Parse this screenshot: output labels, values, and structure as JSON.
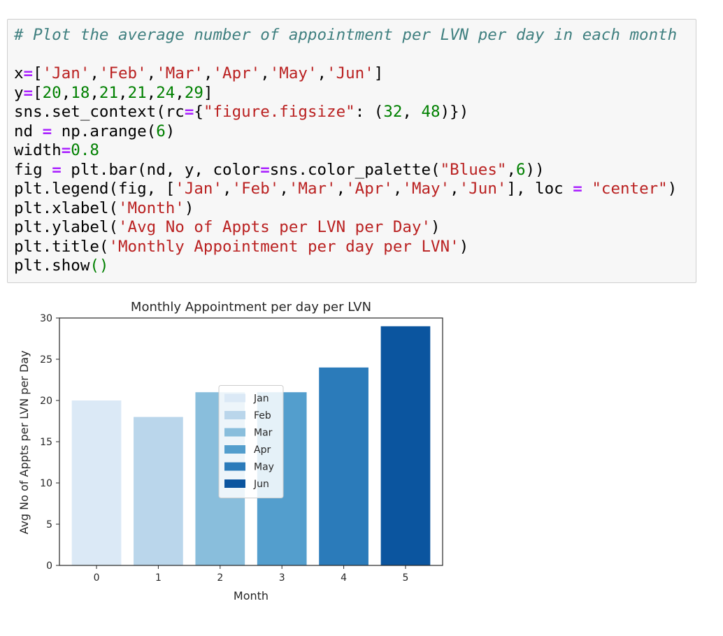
{
  "code_cell": {
    "lines": [
      [
        {
          "t": "# Plot the average number of appointment per LVN per day in each month",
          "c": "cm"
        }
      ],
      [],
      [
        {
          "t": "x",
          "c": "pr"
        },
        {
          "t": "=",
          "c": "op"
        },
        {
          "t": "[",
          "c": "pr"
        },
        {
          "t": "'Jan'",
          "c": "st"
        },
        {
          "t": ",",
          "c": "pr"
        },
        {
          "t": "'Feb'",
          "c": "st"
        },
        {
          "t": ",",
          "c": "pr"
        },
        {
          "t": "'Mar'",
          "c": "st"
        },
        {
          "t": ",",
          "c": "pr"
        },
        {
          "t": "'Apr'",
          "c": "st"
        },
        {
          "t": ",",
          "c": "pr"
        },
        {
          "t": "'May'",
          "c": "st"
        },
        {
          "t": ",",
          "c": "pr"
        },
        {
          "t": "'Jun'",
          "c": "st"
        },
        {
          "t": "]",
          "c": "pr"
        }
      ],
      [
        {
          "t": "y",
          "c": "pr"
        },
        {
          "t": "=",
          "c": "op"
        },
        {
          "t": "[",
          "c": "pr"
        },
        {
          "t": "20",
          "c": "nu"
        },
        {
          "t": ",",
          "c": "pr"
        },
        {
          "t": "18",
          "c": "nu"
        },
        {
          "t": ",",
          "c": "pr"
        },
        {
          "t": "21",
          "c": "nu"
        },
        {
          "t": ",",
          "c": "pr"
        },
        {
          "t": "21",
          "c": "nu"
        },
        {
          "t": ",",
          "c": "pr"
        },
        {
          "t": "24",
          "c": "nu"
        },
        {
          "t": ",",
          "c": "pr"
        },
        {
          "t": "29",
          "c": "nu"
        },
        {
          "t": "]",
          "c": "pr"
        }
      ],
      [
        {
          "t": "sns.set_context(rc",
          "c": "pr"
        },
        {
          "t": "=",
          "c": "op"
        },
        {
          "t": "{",
          "c": "pr"
        },
        {
          "t": "\"figure.figsize\"",
          "c": "st"
        },
        {
          "t": ": (",
          "c": "pr"
        },
        {
          "t": "32",
          "c": "nu"
        },
        {
          "t": ", ",
          "c": "pr"
        },
        {
          "t": "48",
          "c": "nu"
        },
        {
          "t": ")})",
          "c": "pr"
        }
      ],
      [
        {
          "t": "nd ",
          "c": "pr"
        },
        {
          "t": "=",
          "c": "op"
        },
        {
          "t": " np.arange(",
          "c": "pr"
        },
        {
          "t": "6",
          "c": "nu"
        },
        {
          "t": ")",
          "c": "pr"
        }
      ],
      [
        {
          "t": "width",
          "c": "pr"
        },
        {
          "t": "=",
          "c": "op"
        },
        {
          "t": "0.8",
          "c": "nu"
        }
      ],
      [
        {
          "t": "fig ",
          "c": "pr"
        },
        {
          "t": "=",
          "c": "op"
        },
        {
          "t": " plt.bar(nd, y, color",
          "c": "pr"
        },
        {
          "t": "=",
          "c": "op"
        },
        {
          "t": "sns.color_palette(",
          "c": "pr"
        },
        {
          "t": "\"Blues\"",
          "c": "st"
        },
        {
          "t": ",",
          "c": "pr"
        },
        {
          "t": "6",
          "c": "nu"
        },
        {
          "t": "))",
          "c": "pr"
        }
      ],
      [
        {
          "t": "plt.legend(fig, [",
          "c": "pr"
        },
        {
          "t": "'Jan'",
          "c": "st"
        },
        {
          "t": ",",
          "c": "pr"
        },
        {
          "t": "'Feb'",
          "c": "st"
        },
        {
          "t": ",",
          "c": "pr"
        },
        {
          "t": "'Mar'",
          "c": "st"
        },
        {
          "t": ",",
          "c": "pr"
        },
        {
          "t": "'Apr'",
          "c": "st"
        },
        {
          "t": ",",
          "c": "pr"
        },
        {
          "t": "'May'",
          "c": "st"
        },
        {
          "t": ",",
          "c": "pr"
        },
        {
          "t": "'Jun'",
          "c": "st"
        },
        {
          "t": "], loc ",
          "c": "pr"
        },
        {
          "t": "=",
          "c": "op"
        },
        {
          "t": " ",
          "c": "pr"
        },
        {
          "t": "\"center\"",
          "c": "st"
        },
        {
          "t": ")",
          "c": "pr"
        }
      ],
      [
        {
          "t": "plt.xlabel(",
          "c": "pr"
        },
        {
          "t": "'Month'",
          "c": "st"
        },
        {
          "t": ")",
          "c": "pr"
        }
      ],
      [
        {
          "t": "plt.ylabel(",
          "c": "pr"
        },
        {
          "t": "'Avg No of Appts per LVN per Day'",
          "c": "st"
        },
        {
          "t": ")",
          "c": "pr"
        }
      ],
      [
        {
          "t": "plt.title(",
          "c": "pr"
        },
        {
          "t": "'Monthly Appointment per day per LVN'",
          "c": "st"
        },
        {
          "t": ")",
          "c": "pr"
        }
      ],
      [
        {
          "t": "plt.show",
          "c": "pr"
        },
        {
          "t": "()",
          "c": "nu"
        }
      ]
    ]
  },
  "chart_data": {
    "type": "bar",
    "title": "Monthly Appointment per day per LVN",
    "xlabel": "Month",
    "ylabel": "Avg No of Appts per LVN per Day",
    "categories": [
      "0",
      "1",
      "2",
      "3",
      "4",
      "5"
    ],
    "values": [
      20,
      18,
      21,
      21,
      24,
      29
    ],
    "colors": [
      "#dbe9f6",
      "#bad6eb",
      "#89bedc",
      "#539ecd",
      "#2b7bba",
      "#0b559f"
    ],
    "ylim": [
      0,
      30
    ],
    "yticks": [
      0,
      5,
      10,
      15,
      20,
      25,
      30
    ],
    "legend": {
      "placement": "center",
      "entries": [
        "Jan",
        "Feb",
        "Mar",
        "Apr",
        "May",
        "Jun"
      ]
    },
    "grid": false
  }
}
